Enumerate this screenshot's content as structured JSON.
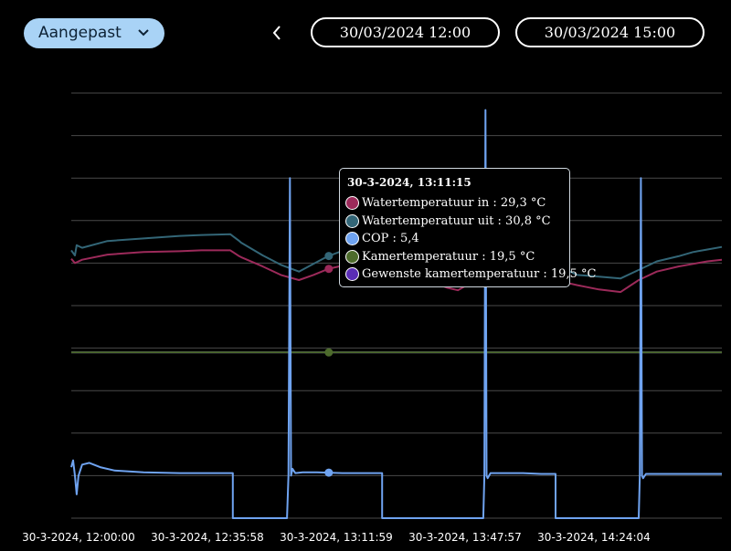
{
  "toolbar": {
    "preset_label": "Aangepast",
    "start_datetime": "30/03/2024 12:00",
    "end_datetime": "30/03/2024 15:00"
  },
  "tooltip": {
    "title": "30-3-2024, 13:11:15",
    "rows": [
      {
        "label": "Watertemperatuur in : 29,3 °C",
        "color": "#9c2a5a"
      },
      {
        "label": "Watertemperatuur uit : 30,8 °C",
        "color": "#336677"
      },
      {
        "label": "COP : 5,4",
        "color": "#6fa3f0"
      },
      {
        "label": "Kamertemperatuur : 19,5 °C",
        "color": "#4d6b2c"
      },
      {
        "label": "Gewenste kamertemperatuur : 19,5 °C",
        "color": "#5a2db5"
      }
    ]
  },
  "chart_data": {
    "type": "line",
    "title": "",
    "xlabel": "",
    "ylabel": "",
    "x_tick_labels": [
      "30-3-2024, 12:00:00",
      "30-3-2024, 12:35:58",
      "30-3-2024, 13:11:59",
      "30-3-2024, 13:47:57",
      "30-3-2024, 14:24:04"
    ],
    "x_range_minutes": [
      0,
      180
    ],
    "y_range": [
      0,
      50
    ],
    "grid": true,
    "legend": "tooltip",
    "hover_minute": 71.25,
    "series": [
      {
        "name": "Watertemperatuur in",
        "unit": "°C",
        "color": "#9c2a5a",
        "x": [
          0,
          1,
          3,
          10,
          20,
          30,
          36,
          44,
          46.5,
          47,
          53,
          58,
          63,
          67,
          71,
          76,
          81,
          85,
          88,
          95,
          101,
          104,
          107,
          113,
          119,
          120,
          123,
          130,
          138,
          140,
          146,
          152,
          157,
          162,
          168,
          172,
          176,
          180
        ],
        "y": [
          30.5,
          30,
          30.4,
          31,
          31.3,
          31.4,
          31.5,
          31.5,
          30.8,
          30.7,
          29.6,
          28.6,
          28,
          28.6,
          29.3,
          29.8,
          30.1,
          30.4,
          29.6,
          28.6,
          27.6,
          27.1,
          26.8,
          28.3,
          29.5,
          30.1,
          29.6,
          28.6,
          27.6,
          27.4,
          26.9,
          26.6,
          28,
          29,
          29.6,
          29.9,
          30.2,
          30.4
        ]
      },
      {
        "name": "Watertemperatuur uit",
        "unit": "°C",
        "color": "#336677",
        "x": [
          0,
          1,
          1.5,
          3,
          10,
          20,
          30,
          36,
          44,
          46.5,
          47,
          53,
          58,
          63,
          67,
          71,
          76,
          81,
          85,
          88,
          95,
          101,
          104,
          107,
          113,
          119,
          120,
          123,
          130,
          138,
          140,
          146,
          152,
          157,
          162,
          168,
          172,
          176,
          180
        ],
        "y": [
          31.5,
          30.9,
          32.1,
          31.8,
          32.6,
          32.9,
          33.2,
          33.3,
          33.4,
          32.6,
          32.4,
          30.9,
          29.8,
          29,
          29.9,
          30.8,
          31.6,
          32,
          32.1,
          31,
          29.8,
          28.6,
          28,
          27.9,
          29.6,
          31.1,
          31.6,
          31.4,
          30.5,
          29,
          28.6,
          28.4,
          28.2,
          29.2,
          30.2,
          30.8,
          31.3,
          31.6,
          31.9
        ]
      },
      {
        "name": "COP",
        "unit": "",
        "color": "#6fa3f0",
        "x": [
          0,
          0.5,
          1,
          1.5,
          2,
          3,
          5,
          8,
          12,
          20,
          30,
          40,
          44.7,
          44.7,
          59.7,
          60.1,
          60.5,
          60.8,
          61.2,
          62,
          64,
          68,
          75,
          80,
          86,
          86,
          114,
          114.3,
          114.6,
          114.9,
          115.2,
          116,
          118,
          125,
          130,
          134,
          134,
          157,
          157.3,
          157.6,
          157.9,
          158.2,
          159,
          161,
          170,
          180
        ],
        "y": [
          6,
          6.8,
          5,
          2.8,
          5,
          6.3,
          6.5,
          6,
          5.6,
          5.4,
          5.3,
          5.3,
          5.3,
          0,
          0,
          5,
          40,
          5,
          5.8,
          5.3,
          5.4,
          5.4,
          5.3,
          5.3,
          5.3,
          0,
          0,
          5,
          48,
          5,
          4.7,
          5.3,
          5.3,
          5.3,
          5.2,
          5.2,
          0,
          0,
          5,
          40,
          5,
          4.7,
          5.2,
          5.2,
          5.2,
          5.2
        ]
      },
      {
        "name": "Kamertemperatuur",
        "unit": "°C",
        "color": "#4d6b2c",
        "x": [
          0,
          180
        ],
        "y": [
          19.5,
          19.5
        ]
      },
      {
        "name": "Gewenste kamertemperatuur",
        "unit": "°C",
        "color": "#5a2db5",
        "x": [
          0,
          180
        ],
        "y": [
          19.5,
          19.5
        ]
      }
    ]
  }
}
